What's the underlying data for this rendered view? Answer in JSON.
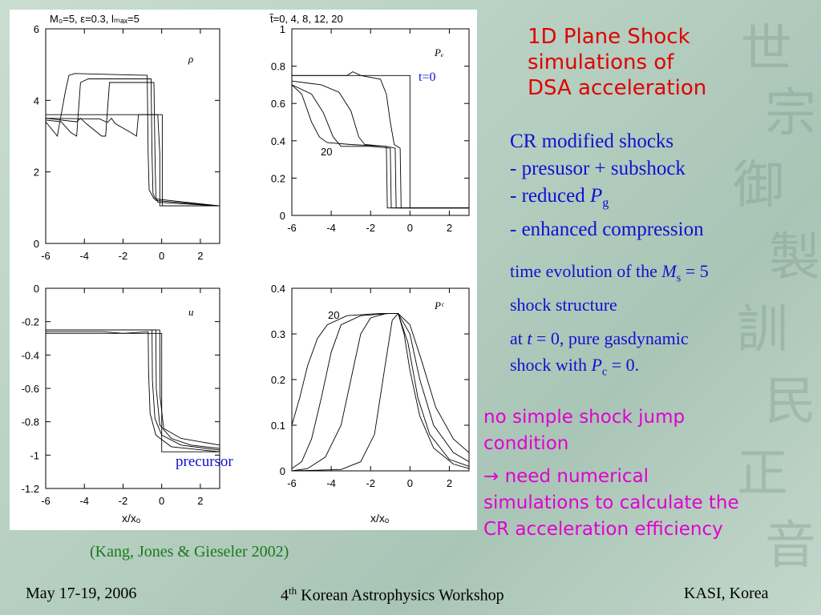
{
  "slide": {
    "title_lines": [
      "1D Plane Shock",
      "simulations of",
      "DSA acceleration"
    ],
    "cr_lines": [
      "CR modified shocks",
      "- presusor + subshock",
      "- reduced ",
      "- enhanced compression"
    ],
    "reduced_symbol": "P",
    "reduced_sub": "g",
    "time_evo_prefix": "time evolution of the ",
    "time_evo_sym": "M",
    "time_evo_sub": "s",
    "time_evo_suffix": " = 5",
    "time_evo_line2": "shock structure",
    "at_t0_a": "at ",
    "at_t0_t": "t",
    "at_t0_b": " = 0, pure gasdynamic",
    "at_t0_c": "shock with ",
    "at_t0_sym": "P",
    "at_t0_sub": "c",
    "at_t0_d": " = 0.",
    "no_jump_lines": [
      "no simple shock jump",
      "condition"
    ],
    "need_lines": [
      "→  need numerical",
      "simulations to calculate the",
      "CR acceleration efficiency"
    ],
    "citation": "(Kang, Jones & Gieseler 2002)",
    "footer": {
      "date": "May 17-19, 2006",
      "workshop_num": "4",
      "workshop_sup": "th",
      "workshop_rest": " Korean Astrophysics Workshop",
      "place": "KASI, Korea"
    }
  },
  "figure": {
    "header_params": "M₀=5,  ε=0.3,  lₘₐₓ=5",
    "header_times": "t̃=0,  4,  8,  12,  20",
    "xlabel": "x/xₒ",
    "t0_label": "t=0",
    "precursor_label": "precursor"
  },
  "chart_data": [
    {
      "type": "line",
      "title": "ρ",
      "xlim": [
        -6,
        3
      ],
      "ylim": [
        0,
        6
      ],
      "xticks": [
        -6,
        -4,
        -2,
        0,
        2
      ],
      "yticks": [
        0,
        2,
        4,
        6
      ],
      "label": "",
      "series": [
        {
          "values": [
            [
              -6,
              3.6
            ],
            [
              0.03,
              3.6
            ],
            [
              0.03,
              1.05
            ],
            [
              3,
              1.05
            ]
          ]
        },
        {
          "values": [
            [
              -6,
              3.5
            ],
            [
              -3.2,
              3.48
            ],
            [
              -2.8,
              3.38
            ],
            [
              -2.6,
              3.5
            ],
            [
              -2.4,
              3.35
            ],
            [
              -1.6,
              3.1
            ],
            [
              -1.3,
              3.0
            ],
            [
              -1.2,
              3.6
            ],
            [
              -0.2,
              3.6
            ],
            [
              -0.1,
              2.5
            ],
            [
              -0.1,
              1.05
            ],
            [
              3,
              1.05
            ]
          ]
        },
        {
          "values": [
            [
              -6,
              3.5
            ],
            [
              -4.4,
              3.4
            ],
            [
              -4.2,
              3.5
            ],
            [
              -3.9,
              3.35
            ],
            [
              -3.1,
              3.0
            ],
            [
              -2.9,
              3.0
            ],
            [
              -2.7,
              4.5
            ],
            [
              -0.4,
              4.5
            ],
            [
              -0.35,
              2.6
            ],
            [
              -0.3,
              1.3
            ],
            [
              -0.2,
              1.15
            ],
            [
              3,
              1.05
            ]
          ]
        },
        {
          "values": [
            [
              -6,
              3.45
            ],
            [
              -5.2,
              3.4
            ],
            [
              -4.7,
              3.1
            ],
            [
              -4.4,
              3.0
            ],
            [
              -4.2,
              4.5
            ],
            [
              -3.8,
              4.6
            ],
            [
              -0.55,
              4.6
            ],
            [
              -0.5,
              2.5
            ],
            [
              -0.45,
              1.4
            ],
            [
              -0.3,
              1.2
            ],
            [
              3,
              1.05
            ]
          ]
        },
        {
          "values": [
            [
              -6,
              3.4
            ],
            [
              -5.4,
              3.0
            ],
            [
              -5.0,
              4.2
            ],
            [
              -4.8,
              4.7
            ],
            [
              -4.5,
              4.75
            ],
            [
              -0.75,
              4.7
            ],
            [
              -0.7,
              2.5
            ],
            [
              -0.65,
              1.5
            ],
            [
              -0.4,
              1.25
            ],
            [
              3,
              1.05
            ]
          ]
        }
      ]
    },
    {
      "type": "line",
      "title": "Pₑ",
      "xlim": [
        -6,
        3
      ],
      "ylim": [
        0,
        1
      ],
      "xticks": [
        -6,
        -4,
        -2,
        0,
        2
      ],
      "yticks": [
        0,
        0.2,
        0.4,
        0.6,
        0.8,
        1
      ],
      "label": "20",
      "series": [
        {
          "values": [
            [
              -6,
              0.75
            ],
            [
              0,
              0.75
            ],
            [
              0,
              0.04
            ],
            [
              3,
              0.04
            ]
          ]
        },
        {
          "values": [
            [
              -6,
              0.75
            ],
            [
              -3.2,
              0.75
            ],
            [
              -2.9,
              0.77
            ],
            [
              -2.5,
              0.75
            ],
            [
              -1.5,
              0.73
            ],
            [
              -1.2,
              0.65
            ],
            [
              -1.0,
              0.5
            ],
            [
              -0.8,
              0.38
            ],
            [
              -0.5,
              0.36
            ],
            [
              -0.45,
              0.04
            ],
            [
              3,
              0.04
            ]
          ]
        },
        {
          "values": [
            [
              -6,
              0.72
            ],
            [
              -4.5,
              0.7
            ],
            [
              -3.6,
              0.66
            ],
            [
              -3.0,
              0.56
            ],
            [
              -2.6,
              0.42
            ],
            [
              -2.3,
              0.38
            ],
            [
              -1.2,
              0.37
            ],
            [
              -0.75,
              0.36
            ],
            [
              -0.7,
              0.04
            ],
            [
              3,
              0.04
            ]
          ]
        },
        {
          "values": [
            [
              -6,
              0.7
            ],
            [
              -5.0,
              0.65
            ],
            [
              -4.4,
              0.55
            ],
            [
              -3.9,
              0.42
            ],
            [
              -3.5,
              0.37
            ],
            [
              -2.0,
              0.37
            ],
            [
              -1.0,
              0.36
            ],
            [
              -0.95,
              0.04
            ],
            [
              3,
              0.04
            ]
          ]
        },
        {
          "values": [
            [
              -6,
              0.7
            ],
            [
              -5.5,
              0.65
            ],
            [
              -5.0,
              0.5
            ],
            [
              -4.6,
              0.42
            ],
            [
              -4.2,
              0.39
            ],
            [
              -3.0,
              0.38
            ],
            [
              -1.2,
              0.37
            ],
            [
              -1.15,
              0.04
            ],
            [
              3,
              0.04
            ]
          ]
        }
      ]
    },
    {
      "type": "line",
      "title": "u",
      "xlim": [
        -6,
        3
      ],
      "ylim": [
        -1.2,
        0
      ],
      "xticks": [
        -6,
        -4,
        -2,
        0,
        2
      ],
      "yticks": [
        0,
        -0.2,
        -0.4,
        -0.6,
        -0.8,
        -1,
        -1.2
      ],
      "label": "",
      "series": [
        {
          "values": [
            [
              -6,
              -0.27
            ],
            [
              0,
              -0.27
            ],
            [
              0,
              -0.98
            ],
            [
              3,
              -0.98
            ]
          ]
        },
        {
          "values": [
            [
              -6,
              -0.26
            ],
            [
              -3,
              -0.26
            ],
            [
              -2,
              -0.27
            ],
            [
              -0.7,
              -0.26
            ],
            [
              -0.68,
              -0.5
            ],
            [
              -0.6,
              -0.75
            ],
            [
              -0.3,
              -0.88
            ],
            [
              0.5,
              -0.95
            ],
            [
              3,
              -0.98
            ]
          ]
        },
        {
          "values": [
            [
              -6,
              -0.25
            ],
            [
              -0.5,
              -0.25
            ],
            [
              -0.48,
              -0.55
            ],
            [
              -0.35,
              -0.78
            ],
            [
              0,
              -0.88
            ],
            [
              1,
              -0.94
            ],
            [
              3,
              -0.97
            ]
          ]
        },
        {
          "values": [
            [
              -6,
              -0.25
            ],
            [
              -0.3,
              -0.25
            ],
            [
              -0.28,
              -0.6
            ],
            [
              -0.1,
              -0.82
            ],
            [
              0.5,
              -0.9
            ],
            [
              1.5,
              -0.94
            ],
            [
              3,
              -0.96
            ]
          ]
        },
        {
          "values": [
            [
              -6,
              -0.25
            ],
            [
              -0.1,
              -0.25
            ],
            [
              -0.08,
              -0.65
            ],
            [
              0.1,
              -0.84
            ],
            [
              1,
              -0.9
            ],
            [
              3,
              -0.94
            ]
          ]
        }
      ]
    },
    {
      "type": "line",
      "title": "Pᶜ",
      "xlim": [
        -6,
        3
      ],
      "ylim": [
        0,
        0.4
      ],
      "xticks": [
        -6,
        -4,
        -2,
        0,
        2
      ],
      "yticks": [
        0,
        0.1,
        0.2,
        0.3,
        0.4
      ],
      "label": "20",
      "series": [
        {
          "values": [
            [
              -6,
              0.0
            ],
            [
              3,
              0.0
            ]
          ]
        },
        {
          "values": [
            [
              -6,
              0.0
            ],
            [
              -3.5,
              0.003
            ],
            [
              -2.5,
              0.02
            ],
            [
              -1.8,
              0.08
            ],
            [
              -1.3,
              0.22
            ],
            [
              -0.9,
              0.33
            ],
            [
              -0.6,
              0.345
            ],
            [
              -0.3,
              0.3
            ],
            [
              0,
              0.22
            ],
            [
              0.5,
              0.12
            ],
            [
              1.2,
              0.05
            ],
            [
              2.2,
              0.015
            ],
            [
              3,
              0.005
            ]
          ]
        },
        {
          "values": [
            [
              -6,
              0.0
            ],
            [
              -5.2,
              0.005
            ],
            [
              -4.3,
              0.03
            ],
            [
              -3.5,
              0.1
            ],
            [
              -2.9,
              0.22
            ],
            [
              -2.5,
              0.3
            ],
            [
              -2.0,
              0.335
            ],
            [
              -1.2,
              0.345
            ],
            [
              -0.6,
              0.345
            ],
            [
              -0.1,
              0.28
            ],
            [
              0.4,
              0.16
            ],
            [
              1.0,
              0.08
            ],
            [
              2.0,
              0.025
            ],
            [
              3,
              0.01
            ]
          ]
        },
        {
          "values": [
            [
              -6,
              0.005
            ],
            [
              -5.5,
              0.02
            ],
            [
              -5.0,
              0.07
            ],
            [
              -4.5,
              0.16
            ],
            [
              -4.0,
              0.26
            ],
            [
              -3.5,
              0.32
            ],
            [
              -2.5,
              0.34
            ],
            [
              -1.0,
              0.345
            ],
            [
              -0.6,
              0.345
            ],
            [
              0,
              0.3
            ],
            [
              0.5,
              0.2
            ],
            [
              1.2,
              0.1
            ],
            [
              2.2,
              0.04
            ],
            [
              3,
              0.02
            ]
          ]
        },
        {
          "values": [
            [
              -6,
              0.1
            ],
            [
              -5.6,
              0.16
            ],
            [
              -5.2,
              0.23
            ],
            [
              -4.7,
              0.29
            ],
            [
              -4.2,
              0.32
            ],
            [
              -3.2,
              0.34
            ],
            [
              -1.5,
              0.345
            ],
            [
              -0.6,
              0.345
            ],
            [
              0,
              0.32
            ],
            [
              0.6,
              0.24
            ],
            [
              1.3,
              0.14
            ],
            [
              2.2,
              0.07
            ],
            [
              3,
              0.04
            ]
          ]
        }
      ]
    }
  ]
}
